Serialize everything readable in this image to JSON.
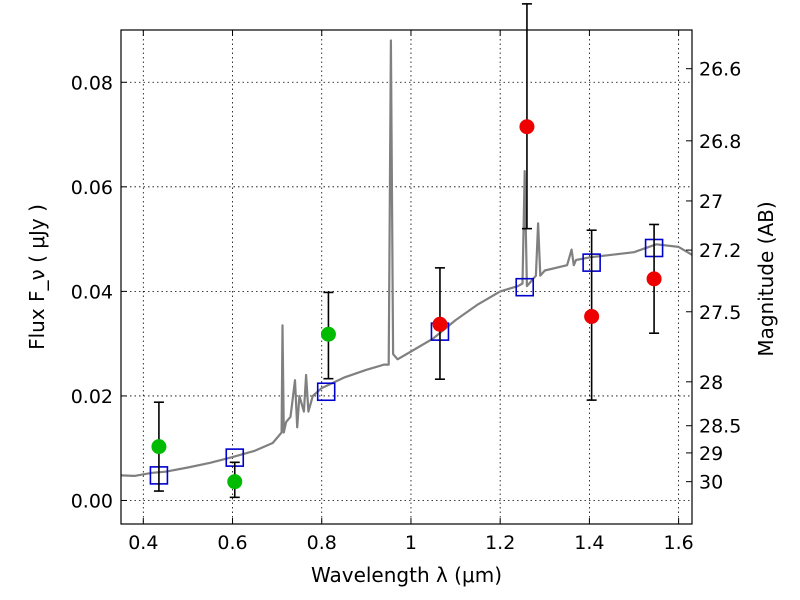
{
  "chart_data": {
    "type": "scatter",
    "xlabel": "Wavelength  λ (μm)",
    "ylabel": "Flux  F_ν  ( μJy )",
    "ylabel_right": "Magnitude (AB)",
    "xlim": [
      0.35,
      1.63
    ],
    "ylim": [
      -0.0045,
      0.09
    ],
    "grid": true,
    "x_ticks": [
      0.4,
      0.6,
      0.8,
      1.0,
      1.2,
      1.4,
      1.6
    ],
    "x_tick_labels": [
      "0.4",
      "0.6",
      "0.8",
      "1",
      "1.2",
      "1.4",
      "1.6"
    ],
    "y_ticks": [
      0.0,
      0.02,
      0.04,
      0.06,
      0.08
    ],
    "y_tick_labels": [
      "0.00",
      "0.02",
      "0.04",
      "0.06",
      "0.08"
    ],
    "right_ticks": [
      {
        "label": "26.6",
        "flux": 0.0826
      },
      {
        "label": "26.8",
        "flux": 0.0688
      },
      {
        "label": "27",
        "flux": 0.0573
      },
      {
        "label": "27.2",
        "flux": 0.0479
      },
      {
        "label": "27.5",
        "flux": 0.0361
      },
      {
        "label": "28",
        "flux": 0.0227
      },
      {
        "label": "28.5",
        "flux": 0.0143
      },
      {
        "label": "29",
        "flux": 0.0091
      },
      {
        "label": "30",
        "flux": 0.0036
      }
    ],
    "series": [
      {
        "kind": "spectrum",
        "color": "#808080",
        "x": [
          0.35,
          0.38,
          0.42,
          0.45,
          0.5,
          0.55,
          0.6,
          0.65,
          0.69,
          0.71,
          0.712,
          0.715,
          0.72,
          0.73,
          0.74,
          0.745,
          0.75,
          0.76,
          0.765,
          0.77,
          0.78,
          0.8,
          0.85,
          0.9,
          0.94,
          0.95,
          0.955,
          0.96,
          0.965,
          0.97,
          1.0,
          1.05,
          1.1,
          1.15,
          1.2,
          1.24,
          1.25,
          1.255,
          1.26,
          1.265,
          1.27,
          1.28,
          1.285,
          1.29,
          1.3,
          1.35,
          1.36,
          1.365,
          1.37,
          1.4,
          1.45,
          1.5,
          1.55,
          1.6,
          1.63
        ],
        "y": [
          0.0048,
          0.0047,
          0.0053,
          0.0055,
          0.0063,
          0.0072,
          0.0083,
          0.0095,
          0.011,
          0.013,
          0.0335,
          0.013,
          0.015,
          0.016,
          0.023,
          0.014,
          0.02,
          0.017,
          0.024,
          0.017,
          0.02,
          0.0215,
          0.0235,
          0.025,
          0.026,
          0.026,
          0.088,
          0.028,
          0.0275,
          0.027,
          0.0285,
          0.031,
          0.0345,
          0.0375,
          0.04,
          0.041,
          0.0415,
          0.063,
          0.041,
          0.0415,
          0.042,
          0.043,
          0.053,
          0.043,
          0.044,
          0.045,
          0.048,
          0.045,
          0.046,
          0.0465,
          0.047,
          0.0475,
          0.049,
          0.0485,
          0.047
        ]
      },
      {
        "kind": "open-squares",
        "color": "#0000cc",
        "x": [
          0.435,
          0.605,
          0.81,
          1.065,
          1.255,
          1.405,
          1.545
        ],
        "y": [
          0.0048,
          0.0082,
          0.0208,
          0.0323,
          0.0408,
          0.0455,
          0.0483
        ]
      },
      {
        "kind": "points",
        "color": "#00bb00",
        "x": [
          0.435,
          0.605,
          0.815
        ],
        "y": [
          0.0103,
          0.0036,
          0.0318
        ],
        "yerr_low": [
          0.0085,
          0.003,
          0.0085
        ],
        "yerr_high": [
          0.0085,
          0.0037,
          0.008
        ]
      },
      {
        "kind": "points",
        "color": "#ee0000",
        "x": [
          1.065,
          1.26,
          1.405,
          1.545
        ],
        "y": [
          0.0337,
          0.0715,
          0.0352,
          0.0424
        ],
        "yerr_low": [
          0.0105,
          0.0195,
          0.016,
          0.0104
        ],
        "yerr_high": [
          0.0108,
          0.0235,
          0.0165,
          0.0104
        ]
      }
    ]
  }
}
